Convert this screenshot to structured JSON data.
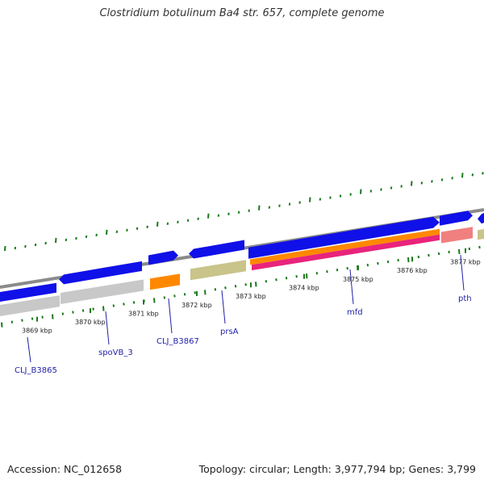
{
  "title": "Clostridium botulinum Ba4 str. 657, complete genome",
  "footer": {
    "accession": "Accession: NC_012658",
    "summary": "Topology: circular; Length: 3,977,794 bp; Genes: 3,799"
  },
  "colors": {
    "backbone": "#8a8a8a",
    "cds_forward": "#1010e8",
    "gene_gray": "#c8c8c8",
    "gene_orange": "#ff8800",
    "gene_khaki": "#c8c48a",
    "gene_magenta": "#e8247c",
    "gene_salmon": "#f08080",
    "gc_plot": "#1a7a1a",
    "label": "#1f1fa8"
  },
  "kbp_ticks": [
    "3869 kbp",
    "3870 kbp",
    "3871 kbp",
    "3872 kbp",
    "3873 kbp",
    "3874 kbp",
    "3875 kbp",
    "3876 kbp",
    "3877 kbp"
  ],
  "gene_labels": [
    {
      "text": "CLJ_B3865"
    },
    {
      "text": "spoVB_3"
    },
    {
      "text": "CLJ_B3867"
    },
    {
      "text": "prsA"
    },
    {
      "text": "mfd"
    },
    {
      "text": "pth"
    }
  ]
}
